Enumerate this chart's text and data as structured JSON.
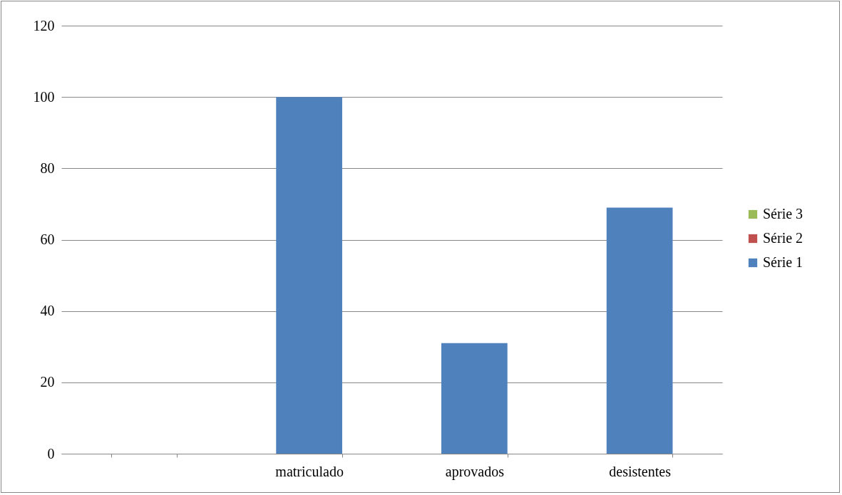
{
  "chart_data": {
    "type": "bar",
    "stacked": true,
    "categories": [
      null,
      "matriculado",
      "aprovados",
      "desistentes"
    ],
    "series": [
      {
        "name": "Série 1",
        "color": "#4f81bd",
        "values": [
          null,
          100,
          31,
          69
        ]
      },
      {
        "name": "Série 2",
        "color": "#c0504d",
        "values": [
          null,
          null,
          null,
          null
        ]
      },
      {
        "name": "Série 3",
        "color": "#9bbb59",
        "values": [
          null,
          null,
          null,
          null
        ]
      }
    ],
    "ylim": [
      0,
      120
    ],
    "yticks": [
      0,
      20,
      40,
      60,
      80,
      100,
      120
    ],
    "grid": "y",
    "legend": "right"
  }
}
